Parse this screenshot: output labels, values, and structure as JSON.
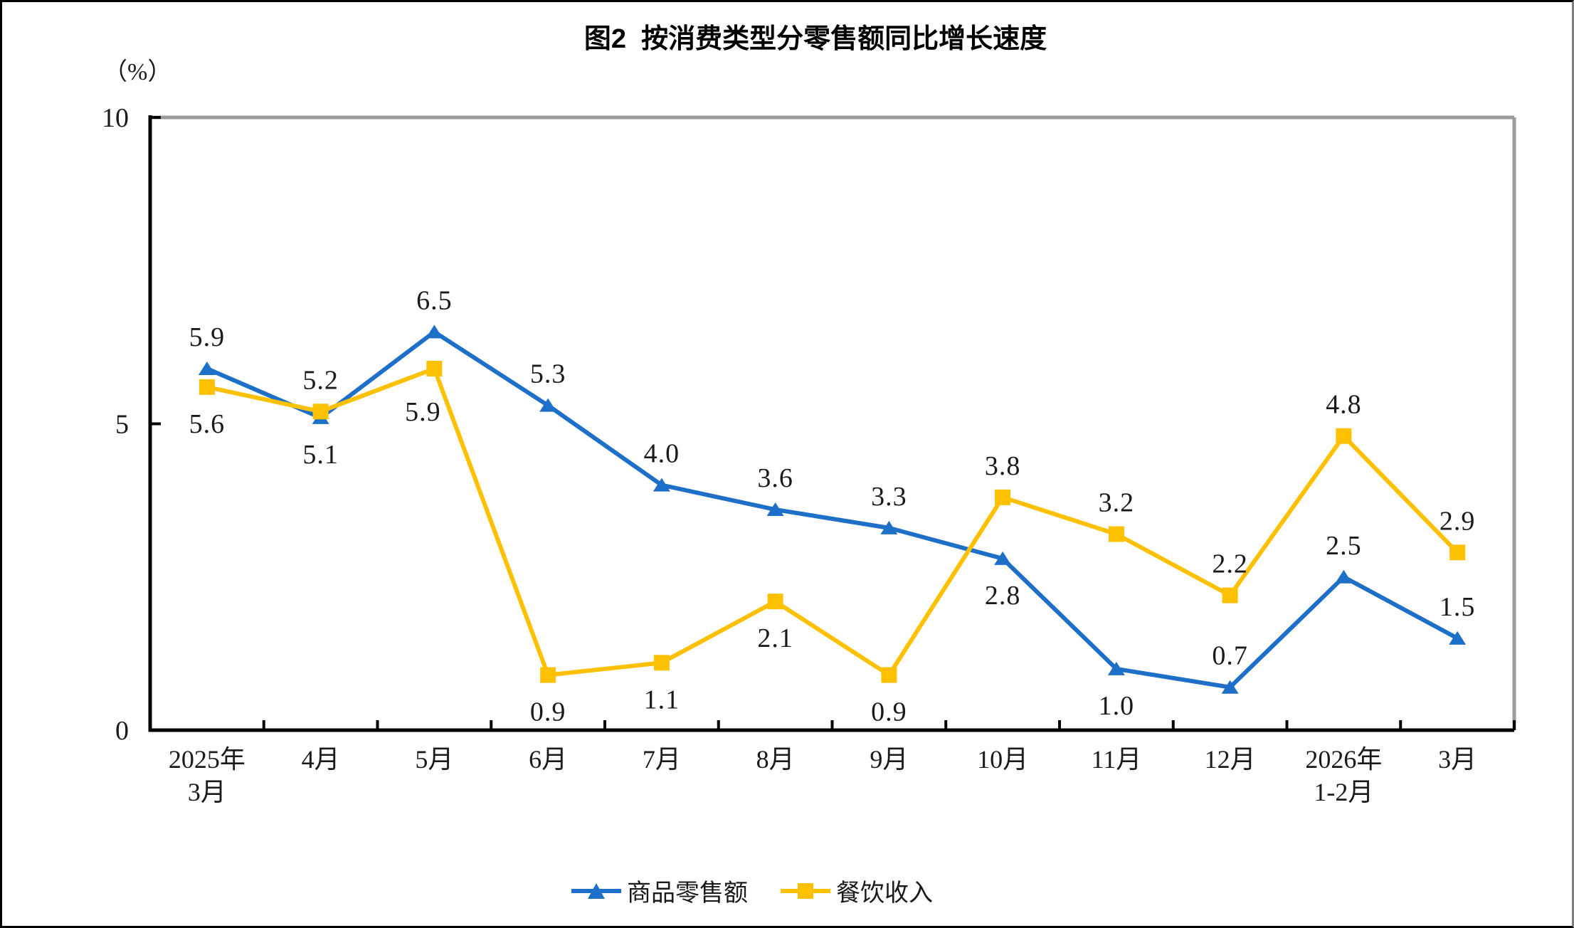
{
  "chart_data": {
    "type": "line",
    "title": "图2  按消费类型分零售额同比增长速度",
    "unit": "（%）",
    "xlabel": "",
    "ylabel": "",
    "ylim": [
      0,
      10
    ],
    "yticks": [
      0,
      5,
      10
    ],
    "grid": false,
    "legend_position": "bottom",
    "axis_color": "#000000",
    "plot_border_color": "#9B9B9B",
    "label_color": "#1A1A1A",
    "categories": [
      "2025年\n3月",
      "4月",
      "5月",
      "6月",
      "7月",
      "8月",
      "9月",
      "10月",
      "11月",
      "12月",
      "2026年\n1-2月",
      "3月"
    ],
    "series": [
      {
        "name": "商品零售额",
        "color": "#1E6FC8",
        "marker": "triangle",
        "values": [
          5.9,
          5.1,
          6.5,
          5.3,
          4.0,
          3.6,
          3.3,
          2.8,
          1.0,
          0.7,
          2.5,
          1.5
        ],
        "label_positions": [
          "above",
          "below",
          "above",
          "above",
          "above",
          "above",
          "above",
          "below",
          "below",
          "above",
          "above",
          "above"
        ]
      },
      {
        "name": "餐饮收入",
        "color": "#FDC101",
        "marker": "square",
        "values": [
          5.6,
          5.2,
          5.9,
          0.9,
          1.1,
          2.1,
          0.9,
          3.8,
          3.2,
          2.2,
          4.8,
          2.9
        ],
        "label_positions": [
          "below",
          "above",
          "below-left",
          "below",
          "below",
          "below",
          "below",
          "above",
          "above",
          "above",
          "above",
          "above"
        ]
      }
    ]
  }
}
